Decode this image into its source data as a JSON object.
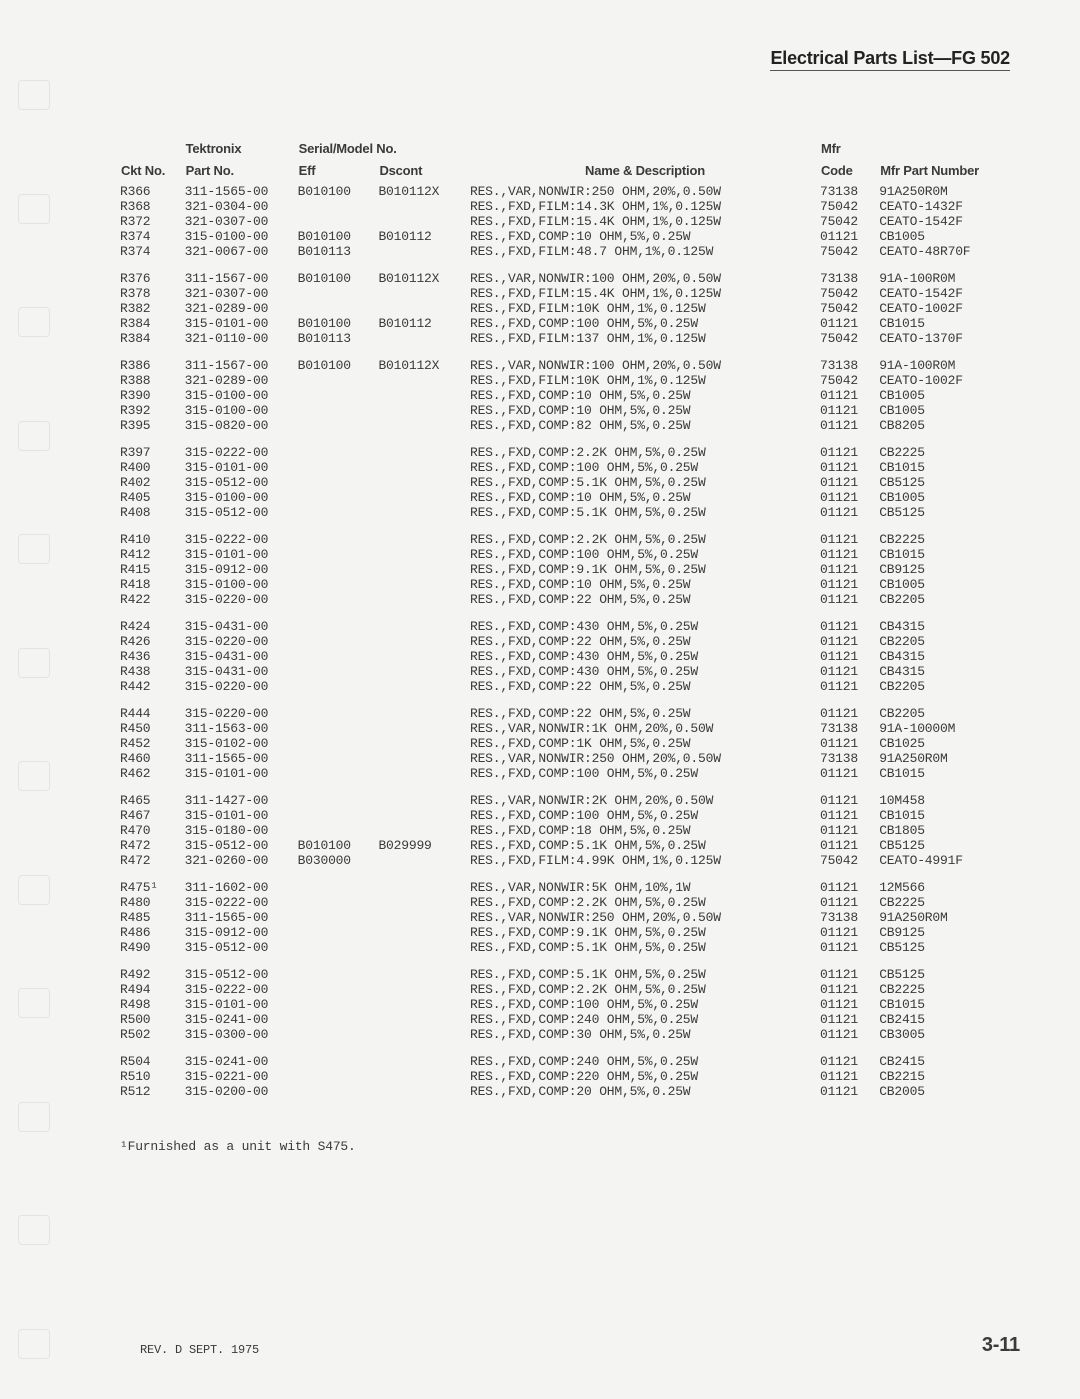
{
  "page_title": "Electrical Parts List—FG 502",
  "headers": {
    "ckt": "Ckt No.",
    "tek_top": "Tektronix",
    "tek_bot": "Part No.",
    "serial_top": "Serial/Model No.",
    "eff": "Eff",
    "dscont": "Dscont",
    "desc": "Name & Description",
    "mfr_top": "Mfr",
    "mfr_bot": "Code",
    "mfrpn": "Mfr Part Number"
  },
  "groups": [
    [
      {
        "ckt": "R366",
        "part": "311-1565-00",
        "eff": "B010100",
        "ds": "B010112X",
        "desc": "RES.,VAR,NONWIR:250 OHM,20%,0.50W",
        "code": "73138",
        "mpn": "91A250R0M"
      },
      {
        "ckt": "R368",
        "part": "321-0304-00",
        "eff": "",
        "ds": "",
        "desc": "RES.,FXD,FILM:14.3K OHM,1%,0.125W",
        "code": "75042",
        "mpn": "CEATO-1432F"
      },
      {
        "ckt": "R372",
        "part": "321-0307-00",
        "eff": "",
        "ds": "",
        "desc": "RES.,FXD,FILM:15.4K OHM,1%,0.125W",
        "code": "75042",
        "mpn": "CEATO-1542F"
      },
      {
        "ckt": "R374",
        "part": "315-0100-00",
        "eff": "B010100",
        "ds": "B010112",
        "desc": "RES.,FXD,COMP:10 OHM,5%,0.25W",
        "code": "01121",
        "mpn": "CB1005"
      },
      {
        "ckt": "R374",
        "part": "321-0067-00",
        "eff": "B010113",
        "ds": "",
        "desc": "RES.,FXD,FILM:48.7 OHM,1%,0.125W",
        "code": "75042",
        "mpn": "CEATO-48R70F"
      }
    ],
    [
      {
        "ckt": "R376",
        "part": "311-1567-00",
        "eff": "B010100",
        "ds": "B010112X",
        "desc": "RES.,VAR,NONWIR:100 OHM,20%,0.50W",
        "code": "73138",
        "mpn": "91A-100R0M"
      },
      {
        "ckt": "R378",
        "part": "321-0307-00",
        "eff": "",
        "ds": "",
        "desc": "RES.,FXD,FILM:15.4K OHM,1%,0.125W",
        "code": "75042",
        "mpn": "CEATO-1542F"
      },
      {
        "ckt": "R382",
        "part": "321-0289-00",
        "eff": "",
        "ds": "",
        "desc": "RES.,FXD,FILM:10K OHM,1%,0.125W",
        "code": "75042",
        "mpn": "CEATO-1002F"
      },
      {
        "ckt": "R384",
        "part": "315-0101-00",
        "eff": "B010100",
        "ds": "B010112",
        "desc": "RES.,FXD,COMP:100 OHM,5%,0.25W",
        "code": "01121",
        "mpn": "CB1015"
      },
      {
        "ckt": "R384",
        "part": "321-0110-00",
        "eff": "B010113",
        "ds": "",
        "desc": "RES.,FXD,FILM:137 OHM,1%,0.125W",
        "code": "75042",
        "mpn": "CEATO-1370F"
      }
    ],
    [
      {
        "ckt": "R386",
        "part": "311-1567-00",
        "eff": "B010100",
        "ds": "B010112X",
        "desc": "RES.,VAR,NONWIR:100 OHM,20%,0.50W",
        "code": "73138",
        "mpn": "91A-100R0M"
      },
      {
        "ckt": "R388",
        "part": "321-0289-00",
        "eff": "",
        "ds": "",
        "desc": "RES.,FXD,FILM:10K OHM,1%,0.125W",
        "code": "75042",
        "mpn": "CEATO-1002F"
      },
      {
        "ckt": "R390",
        "part": "315-0100-00",
        "eff": "",
        "ds": "",
        "desc": "RES.,FXD,COMP:10 OHM,5%,0.25W",
        "code": "01121",
        "mpn": "CB1005"
      },
      {
        "ckt": "R392",
        "part": "315-0100-00",
        "eff": "",
        "ds": "",
        "desc": "RES.,FXD,COMP:10 OHM,5%,0.25W",
        "code": "01121",
        "mpn": "CB1005"
      },
      {
        "ckt": "R395",
        "part": "315-0820-00",
        "eff": "",
        "ds": "",
        "desc": "RES.,FXD,COMP:82 OHM,5%,0.25W",
        "code": "01121",
        "mpn": "CB8205"
      }
    ],
    [
      {
        "ckt": "R397",
        "part": "315-0222-00",
        "eff": "",
        "ds": "",
        "desc": "RES.,FXD,COMP:2.2K OHM,5%,0.25W",
        "code": "01121",
        "mpn": "CB2225"
      },
      {
        "ckt": "R400",
        "part": "315-0101-00",
        "eff": "",
        "ds": "",
        "desc": "RES.,FXD,COMP:100 OHM,5%,0.25W",
        "code": "01121",
        "mpn": "CB1015"
      },
      {
        "ckt": "R402",
        "part": "315-0512-00",
        "eff": "",
        "ds": "",
        "desc": "RES.,FXD,COMP:5.1K OHM,5%,0.25W",
        "code": "01121",
        "mpn": "CB5125"
      },
      {
        "ckt": "R405",
        "part": "315-0100-00",
        "eff": "",
        "ds": "",
        "desc": "RES.,FXD,COMP:10 OHM,5%,0.25W",
        "code": "01121",
        "mpn": "CB1005"
      },
      {
        "ckt": "R408",
        "part": "315-0512-00",
        "eff": "",
        "ds": "",
        "desc": "RES.,FXD,COMP:5.1K OHM,5%,0.25W",
        "code": "01121",
        "mpn": "CB5125"
      }
    ],
    [
      {
        "ckt": "R410",
        "part": "315-0222-00",
        "eff": "",
        "ds": "",
        "desc": "RES.,FXD,COMP:2.2K OHM,5%,0.25W",
        "code": "01121",
        "mpn": "CB2225"
      },
      {
        "ckt": "R412",
        "part": "315-0101-00",
        "eff": "",
        "ds": "",
        "desc": "RES.,FXD,COMP:100 OHM,5%,0.25W",
        "code": "01121",
        "mpn": "CB1015"
      },
      {
        "ckt": "R415",
        "part": "315-0912-00",
        "eff": "",
        "ds": "",
        "desc": "RES.,FXD,COMP:9.1K OHM,5%,0.25W",
        "code": "01121",
        "mpn": "CB9125"
      },
      {
        "ckt": "R418",
        "part": "315-0100-00",
        "eff": "",
        "ds": "",
        "desc": "RES.,FXD,COMP:10 OHM,5%,0.25W",
        "code": "01121",
        "mpn": "CB1005"
      },
      {
        "ckt": "R422",
        "part": "315-0220-00",
        "eff": "",
        "ds": "",
        "desc": "RES.,FXD,COMP:22 OHM,5%,0.25W",
        "code": "01121",
        "mpn": "CB2205"
      }
    ],
    [
      {
        "ckt": "R424",
        "part": "315-0431-00",
        "eff": "",
        "ds": "",
        "desc": "RES.,FXD,COMP:430 OHM,5%,0.25W",
        "code": "01121",
        "mpn": "CB4315"
      },
      {
        "ckt": "R426",
        "part": "315-0220-00",
        "eff": "",
        "ds": "",
        "desc": "RES.,FXD,COMP:22 OHM,5%,0.25W",
        "code": "01121",
        "mpn": "CB2205"
      },
      {
        "ckt": "R436",
        "part": "315-0431-00",
        "eff": "",
        "ds": "",
        "desc": "RES.,FXD,COMP:430 OHM,5%,0.25W",
        "code": "01121",
        "mpn": "CB4315"
      },
      {
        "ckt": "R438",
        "part": "315-0431-00",
        "eff": "",
        "ds": "",
        "desc": "RES.,FXD,COMP:430 OHM,5%,0.25W",
        "code": "01121",
        "mpn": "CB4315"
      },
      {
        "ckt": "R442",
        "part": "315-0220-00",
        "eff": "",
        "ds": "",
        "desc": "RES.,FXD,COMP:22 OHM,5%,0.25W",
        "code": "01121",
        "mpn": "CB2205"
      }
    ],
    [
      {
        "ckt": "R444",
        "part": "315-0220-00",
        "eff": "",
        "ds": "",
        "desc": "RES.,FXD,COMP:22 OHM,5%,0.25W",
        "code": "01121",
        "mpn": "CB2205"
      },
      {
        "ckt": "R450",
        "part": "311-1563-00",
        "eff": "",
        "ds": "",
        "desc": "RES.,VAR,NONWIR:1K OHM,20%,0.50W",
        "code": "73138",
        "mpn": "91A-10000M"
      },
      {
        "ckt": "R452",
        "part": "315-0102-00",
        "eff": "",
        "ds": "",
        "desc": "RES.,FXD,COMP:1K OHM,5%,0.25W",
        "code": "01121",
        "mpn": "CB1025"
      },
      {
        "ckt": "R460",
        "part": "311-1565-00",
        "eff": "",
        "ds": "",
        "desc": "RES.,VAR,NONWIR:250 OHM,20%,0.50W",
        "code": "73138",
        "mpn": "91A250R0M"
      },
      {
        "ckt": "R462",
        "part": "315-0101-00",
        "eff": "",
        "ds": "",
        "desc": "RES.,FXD,COMP:100 OHM,5%,0.25W",
        "code": "01121",
        "mpn": "CB1015"
      }
    ],
    [
      {
        "ckt": "R465",
        "part": "311-1427-00",
        "eff": "",
        "ds": "",
        "desc": "RES.,VAR,NONWIR:2K OHM,20%,0.50W",
        "code": "01121",
        "mpn": "10M458"
      },
      {
        "ckt": "R467",
        "part": "315-0101-00",
        "eff": "",
        "ds": "",
        "desc": "RES.,FXD,COMP:100 OHM,5%,0.25W",
        "code": "01121",
        "mpn": "CB1015"
      },
      {
        "ckt": "R470",
        "part": "315-0180-00",
        "eff": "",
        "ds": "",
        "desc": "RES.,FXD,COMP:18 OHM,5%,0.25W",
        "code": "01121",
        "mpn": "CB1805"
      },
      {
        "ckt": "R472",
        "part": "315-0512-00",
        "eff": "B010100",
        "ds": "B029999",
        "desc": "RES.,FXD,COMP:5.1K OHM,5%,0.25W",
        "code": "01121",
        "mpn": "CB5125"
      },
      {
        "ckt": "R472",
        "part": "321-0260-00",
        "eff": "B030000",
        "ds": "",
        "desc": "RES.,FXD,FILM:4.99K OHM,1%,0.125W",
        "code": "75042",
        "mpn": "CEATO-4991F"
      }
    ],
    [
      {
        "ckt": "R475¹",
        "part": "311-1602-00",
        "eff": "",
        "ds": "",
        "desc": "RES.,VAR,NONWIR:5K OHM,10%,1W",
        "code": "01121",
        "mpn": "12M566"
      },
      {
        "ckt": "R480",
        "part": "315-0222-00",
        "eff": "",
        "ds": "",
        "desc": "RES.,FXD,COMP:2.2K OHM,5%,0.25W",
        "code": "01121",
        "mpn": "CB2225"
      },
      {
        "ckt": "R485",
        "part": "311-1565-00",
        "eff": "",
        "ds": "",
        "desc": "RES.,VAR,NONWIR:250 OHM,20%,0.50W",
        "code": "73138",
        "mpn": "91A250R0M"
      },
      {
        "ckt": "R486",
        "part": "315-0912-00",
        "eff": "",
        "ds": "",
        "desc": "RES.,FXD,COMP:9.1K OHM,5%,0.25W",
        "code": "01121",
        "mpn": "CB9125"
      },
      {
        "ckt": "R490",
        "part": "315-0512-00",
        "eff": "",
        "ds": "",
        "desc": "RES.,FXD,COMP:5.1K OHM,5%,0.25W",
        "code": "01121",
        "mpn": "CB5125"
      }
    ],
    [
      {
        "ckt": "R492",
        "part": "315-0512-00",
        "eff": "",
        "ds": "",
        "desc": "RES.,FXD,COMP:5.1K OHM,5%,0.25W",
        "code": "01121",
        "mpn": "CB5125"
      },
      {
        "ckt": "R494",
        "part": "315-0222-00",
        "eff": "",
        "ds": "",
        "desc": "RES.,FXD,COMP:2.2K OHM,5%,0.25W",
        "code": "01121",
        "mpn": "CB2225"
      },
      {
        "ckt": "R498",
        "part": "315-0101-00",
        "eff": "",
        "ds": "",
        "desc": "RES.,FXD,COMP:100 OHM,5%,0.25W",
        "code": "01121",
        "mpn": "CB1015"
      },
      {
        "ckt": "R500",
        "part": "315-0241-00",
        "eff": "",
        "ds": "",
        "desc": "RES.,FXD,COMP:240 OHM,5%,0.25W",
        "code": "01121",
        "mpn": "CB2415"
      },
      {
        "ckt": "R502",
        "part": "315-0300-00",
        "eff": "",
        "ds": "",
        "desc": "RES.,FXD,COMP:30 OHM,5%,0.25W",
        "code": "01121",
        "mpn": "CB3005"
      }
    ],
    [
      {
        "ckt": "R504",
        "part": "315-0241-00",
        "eff": "",
        "ds": "",
        "desc": "RES.,FXD,COMP:240 OHM,5%,0.25W",
        "code": "01121",
        "mpn": "CB2415"
      },
      {
        "ckt": "R510",
        "part": "315-0221-00",
        "eff": "",
        "ds": "",
        "desc": "RES.,FXD,COMP:220 OHM,5%,0.25W",
        "code": "01121",
        "mpn": "CB2215"
      },
      {
        "ckt": "R512",
        "part": "315-0200-00",
        "eff": "",
        "ds": "",
        "desc": "RES.,FXD,COMP:20 OHM,5%,0.25W",
        "code": "01121",
        "mpn": "CB2005"
      }
    ]
  ],
  "footnote": "¹Furnished as a unit with S475.",
  "revision": "REV. D SEPT. 1975",
  "pagenum": "3-11"
}
